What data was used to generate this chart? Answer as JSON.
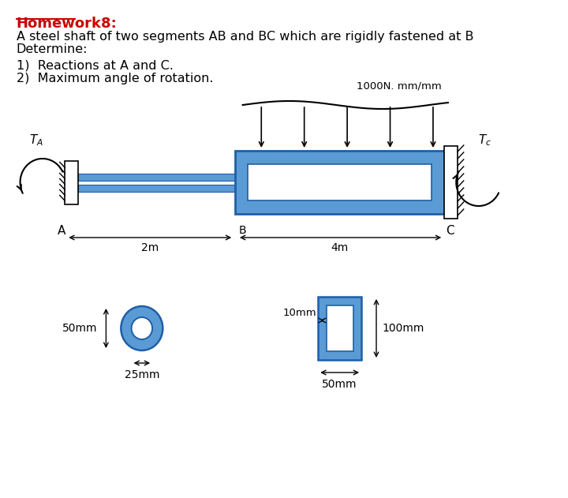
{
  "title": "Homework8:",
  "line1": "A steel shaft of two segments AB and BC which are rigidly fastened at B",
  "line2": "Determine:",
  "item1": "1)  Reactions at A and C.",
  "item2": "2)  Maximum angle of rotation.",
  "load_label": "1000N. mm/mm",
  "label_TA": "$T_A$",
  "label_TC": "$T_c$",
  "label_A": "A",
  "label_B": "B",
  "label_C": "C",
  "dim_AB": "2m",
  "dim_BC": "4m",
  "dim_50mm_left": "50mm",
  "dim_25mm": "25mm",
  "dim_10mm": "10mm",
  "dim_100mm": "100mm",
  "dim_50mm_right": "50mm",
  "blue_fill": "#5b9bd5",
  "blue_border": "#1f5fa6",
  "bg_color": "#ffffff",
  "text_color": "#000000",
  "title_color": "#cc0000"
}
